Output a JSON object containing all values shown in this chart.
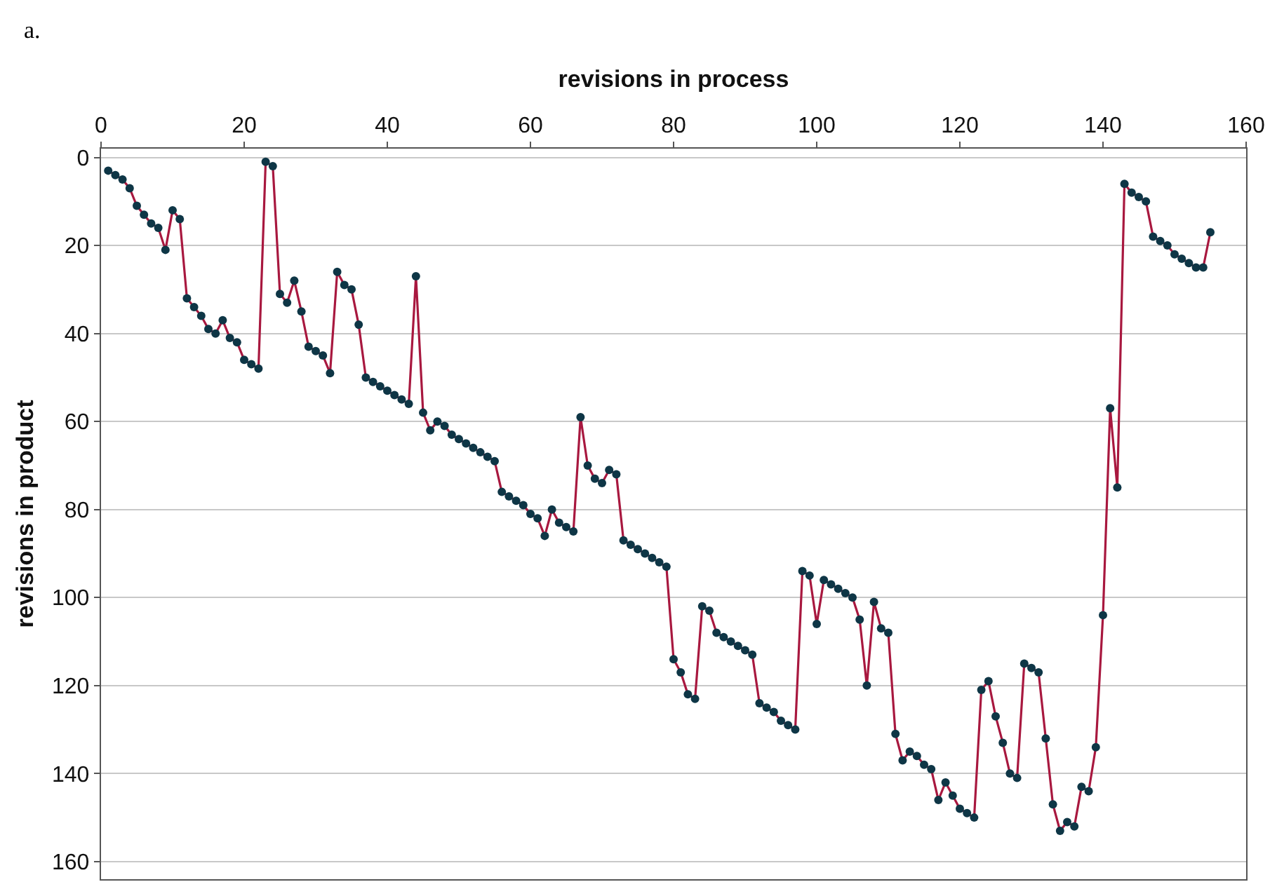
{
  "chart_data": {
    "type": "line",
    "xlabel": "revisions in process",
    "ylabel": "revisions in product",
    "annotations": [
      "a."
    ],
    "xlim": [
      0,
      160
    ],
    "xticks": [
      0,
      20,
      40,
      60,
      80,
      100,
      120,
      140,
      160
    ],
    "ylim": [
      164,
      -2
    ],
    "yticks": [
      0,
      20,
      40,
      60,
      80,
      100,
      120,
      140,
      160
    ],
    "grid": "y",
    "marker": "circle",
    "line_style": "solid",
    "x": [
      1,
      2,
      3,
      4,
      5,
      6,
      7,
      8,
      9,
      10,
      11,
      12,
      13,
      14,
      15,
      16,
      17,
      18,
      19,
      20,
      21,
      22,
      23,
      24,
      25,
      26,
      27,
      28,
      29,
      30,
      31,
      32,
      33,
      34,
      35,
      36,
      37,
      38,
      39,
      40,
      41,
      42,
      43,
      44,
      45,
      46,
      47,
      48,
      49,
      50,
      51,
      52,
      53,
      54,
      55,
      56,
      57,
      58,
      59,
      60,
      61,
      62,
      63,
      64,
      65,
      66,
      67,
      68,
      69,
      70,
      71,
      72,
      73,
      74,
      75,
      76,
      77,
      78,
      79,
      80,
      81,
      82,
      83,
      84,
      85,
      86,
      87,
      88,
      89,
      90,
      91,
      92,
      93,
      94,
      95,
      96,
      97,
      98,
      99,
      100,
      101,
      102,
      103,
      104,
      105,
      106,
      107,
      108,
      109,
      110,
      111,
      112,
      113,
      114,
      115,
      116,
      117,
      118,
      119,
      120,
      121,
      122,
      123,
      124,
      125,
      126,
      127,
      128,
      129,
      130,
      131,
      132,
      133,
      134,
      135,
      136,
      137,
      138,
      139,
      140,
      141,
      142,
      143,
      144,
      145,
      146,
      147,
      148,
      149,
      150,
      151,
      152,
      153,
      154,
      155
    ],
    "series": [
      {
        "color": "#a8183f",
        "values": [
          3,
          4,
          5,
          7,
          11,
          13,
          15,
          16,
          21,
          12,
          14,
          32,
          34,
          36,
          39,
          40,
          37,
          41,
          42,
          46,
          47,
          48,
          1,
          2,
          31,
          33,
          28,
          35,
          43,
          44,
          45,
          49,
          26,
          29,
          30,
          38,
          50,
          51,
          52,
          53,
          54,
          55,
          56,
          27,
          58,
          62,
          60,
          61,
          63,
          64,
          65,
          66,
          67,
          68,
          69,
          76,
          77,
          78,
          79,
          81,
          82,
          86,
          80,
          83,
          84,
          85,
          59,
          70,
          73,
          74,
          71,
          72,
          87,
          88,
          89,
          90,
          91,
          92,
          93,
          114,
          117,
          122,
          123,
          102,
          103,
          108,
          109,
          110,
          111,
          112,
          113,
          124,
          125,
          126,
          128,
          129,
          130,
          94,
          95,
          106,
          96,
          97,
          98,
          99,
          100,
          105,
          120,
          101,
          107,
          108,
          131,
          137,
          135,
          136,
          138,
          139,
          146,
          142,
          145,
          148,
          149,
          150,
          121,
          119,
          127,
          133,
          140,
          141,
          115,
          116,
          117,
          132,
          147,
          153,
          151,
          152,
          143,
          144,
          134,
          104,
          57,
          75,
          6,
          8,
          9,
          10,
          18,
          19,
          20,
          22,
          23,
          24,
          25,
          25,
          17
        ]
      }
    ]
  }
}
